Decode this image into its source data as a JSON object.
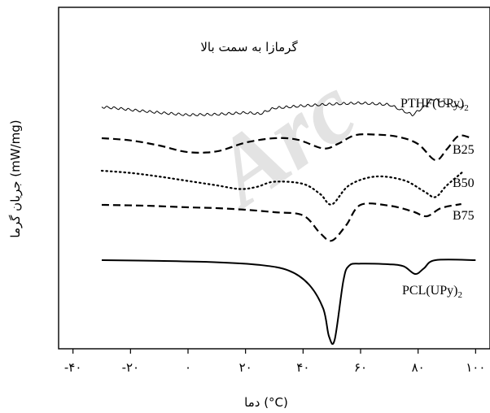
{
  "chart_data": {
    "type": "line",
    "title": "",
    "annotation": "گرمازا به سمت بالا",
    "watermark": "Arc",
    "xlabel": "دما (°C)",
    "ylabel": "جریان گرما (mW/mg)",
    "xlim": [
      -45,
      105
    ],
    "x_ticks": [
      {
        "value": -40,
        "label": "-۴۰"
      },
      {
        "value": -20,
        "label": "-۲۰"
      },
      {
        "value": 0,
        "label": "۰"
      },
      {
        "value": 20,
        "label": "۲۰"
      },
      {
        "value": 40,
        "label": "۴۰"
      },
      {
        "value": 60,
        "label": "۶۰"
      },
      {
        "value": 80,
        "label": "۸۰"
      },
      {
        "value": 100,
        "label": "۱۰۰"
      }
    ],
    "series": [
      {
        "name": "PTHF(UPy)",
        "name_sub": "2",
        "style": "wavy",
        "points": [
          [
            -30,
            0.2
          ],
          [
            -25,
            0.0
          ],
          [
            -20,
            -0.3
          ],
          [
            -10,
            -0.8
          ],
          [
            0,
            -1.2
          ],
          [
            10,
            -1.1
          ],
          [
            20,
            -0.8
          ],
          [
            25,
            -1.0
          ],
          [
            30,
            0.0
          ],
          [
            40,
            0.4
          ],
          [
            50,
            0.7
          ],
          [
            60,
            0.9
          ],
          [
            70,
            0.6
          ],
          [
            78,
            -1.2
          ],
          [
            82,
            0.2
          ],
          [
            85,
            1.6
          ],
          [
            88,
            1.2
          ],
          [
            92,
            0.4
          ],
          [
            96,
            0.2
          ]
        ]
      },
      {
        "name": "B25",
        "style": "dashed",
        "points": [
          [
            -30,
            0.0
          ],
          [
            -20,
            -0.3
          ],
          [
            -10,
            -1.0
          ],
          [
            0,
            -1.9
          ],
          [
            10,
            -1.8
          ],
          [
            20,
            -0.6
          ],
          [
            30,
            0.0
          ],
          [
            38,
            -0.2
          ],
          [
            47,
            -1.4
          ],
          [
            52,
            -0.8
          ],
          [
            58,
            0.4
          ],
          [
            65,
            0.5
          ],
          [
            73,
            0.2
          ],
          [
            80,
            -0.8
          ],
          [
            86,
            -3.0
          ],
          [
            90,
            -1.5
          ],
          [
            94,
            0.3
          ],
          [
            98,
            0.1
          ]
        ]
      },
      {
        "name": "B50",
        "style": "dotted",
        "points": [
          [
            -30,
            0.0
          ],
          [
            -20,
            -0.3
          ],
          [
            -10,
            -0.8
          ],
          [
            0,
            -1.4
          ],
          [
            10,
            -2.0
          ],
          [
            18,
            -2.5
          ],
          [
            24,
            -2.2
          ],
          [
            30,
            -1.5
          ],
          [
            40,
            -1.8
          ],
          [
            46,
            -3.2
          ],
          [
            50,
            -4.6
          ],
          [
            56,
            -2.0
          ],
          [
            65,
            -0.8
          ],
          [
            75,
            -1.3
          ],
          [
            82,
            -2.8
          ],
          [
            86,
            -3.6
          ],
          [
            90,
            -2.0
          ],
          [
            96,
            0.0
          ]
        ]
      },
      {
        "name": "B75",
        "style": "dashed",
        "points": [
          [
            -30,
            0.0
          ],
          [
            -15,
            -0.1
          ],
          [
            0,
            -0.3
          ],
          [
            10,
            -0.4
          ],
          [
            20,
            -0.6
          ],
          [
            30,
            -0.9
          ],
          [
            40,
            -1.3
          ],
          [
            46,
            -3.5
          ],
          [
            50,
            -4.4
          ],
          [
            55,
            -2.5
          ],
          [
            60,
            0.0
          ],
          [
            70,
            -0.1
          ],
          [
            78,
            -0.8
          ],
          [
            83,
            -1.4
          ],
          [
            88,
            -0.4
          ],
          [
            95,
            0.1
          ]
        ]
      },
      {
        "name": "PCL(UPy)",
        "name_sub": "2",
        "style": "solid",
        "points": [
          [
            -30,
            0.0
          ],
          [
            -10,
            -0.1
          ],
          [
            10,
            -0.3
          ],
          [
            25,
            -0.7
          ],
          [
            35,
            -1.5
          ],
          [
            42,
            -3.5
          ],
          [
            47,
            -7.0
          ],
          [
            49,
            -11.0
          ],
          [
            51,
            -11.5
          ],
          [
            54,
            -3.0
          ],
          [
            56,
            -0.8
          ],
          [
            60,
            -0.5
          ],
          [
            70,
            -0.6
          ],
          [
            75,
            -0.9
          ],
          [
            79,
            -2.0
          ],
          [
            82,
            -1.2
          ],
          [
            86,
            0.0
          ],
          [
            100,
            0.0
          ]
        ]
      }
    ]
  }
}
